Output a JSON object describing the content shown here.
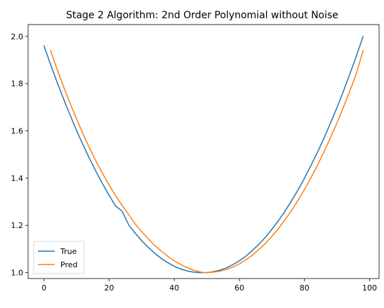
{
  "chart_data": {
    "type": "line",
    "title": "Stage 2 Algorithm: 2nd Order Polynomial without Noise",
    "xlabel": "",
    "ylabel": "",
    "xlim": [
      -4.9,
      102.9
    ],
    "ylim": [
      0.975,
      2.05
    ],
    "x_ticks": [
      0,
      20,
      40,
      60,
      80,
      100
    ],
    "y_ticks": [
      1.0,
      1.2,
      1.4,
      1.6,
      1.8,
      2.0
    ],
    "x_tick_labels": [
      "0",
      "20",
      "40",
      "60",
      "80",
      "100"
    ],
    "y_tick_labels": [
      "1.0",
      "1.2",
      "1.4",
      "1.6",
      "1.8",
      "2.0"
    ],
    "grid": false,
    "legend": {
      "position": "lower-left"
    },
    "series": [
      {
        "name": "True",
        "color": "#1f77b4",
        "x": [
          0,
          2,
          4,
          6,
          8,
          10,
          12,
          14,
          16,
          18,
          20,
          22,
          24,
          26,
          28,
          30,
          32,
          34,
          36,
          38,
          40,
          42,
          44,
          46,
          48,
          49,
          50,
          52,
          54,
          56,
          58,
          60,
          62,
          64,
          66,
          68,
          70,
          72,
          74,
          76,
          78,
          80,
          82,
          84,
          86,
          88,
          90,
          92,
          94,
          96,
          98
        ],
        "y": [
          1.96,
          1.881,
          1.806,
          1.735,
          1.667,
          1.601,
          1.54,
          1.482,
          1.427,
          1.375,
          1.327,
          1.282,
          1.26,
          1.202,
          1.167,
          1.135,
          1.107,
          1.082,
          1.06,
          1.042,
          1.027,
          1.015,
          1.007,
          1.002,
          1.0,
          1.0,
          1.0,
          1.004,
          1.01,
          1.02,
          1.034,
          1.05,
          1.07,
          1.094,
          1.12,
          1.15,
          1.184,
          1.22,
          1.26,
          1.304,
          1.35,
          1.4,
          1.454,
          1.51,
          1.57,
          1.634,
          1.7,
          1.77,
          1.844,
          1.92,
          2.0
        ]
      },
      {
        "name": "Pred",
        "color": "#ff7f0e",
        "x": [
          2,
          4,
          6,
          8,
          10,
          12,
          14,
          16,
          18,
          20,
          22,
          24,
          26,
          28,
          30,
          32,
          34,
          36,
          38,
          40,
          42,
          44,
          46,
          48,
          49,
          50,
          52,
          54,
          56,
          58,
          60,
          62,
          64,
          66,
          68,
          70,
          72,
          74,
          76,
          78,
          80,
          82,
          84,
          86,
          88,
          90,
          92,
          94,
          96,
          98
        ],
        "y": [
          1.94,
          1.861,
          1.787,
          1.717,
          1.65,
          1.587,
          1.527,
          1.471,
          1.419,
          1.37,
          1.325,
          1.284,
          1.246,
          1.206,
          1.173,
          1.143,
          1.115,
          1.091,
          1.069,
          1.05,
          1.034,
          1.021,
          1.01,
          1.003,
          1.0,
          1.0,
          1.002,
          1.006,
          1.013,
          1.024,
          1.037,
          1.054,
          1.074,
          1.098,
          1.124,
          1.154,
          1.187,
          1.223,
          1.263,
          1.306,
          1.352,
          1.402,
          1.455,
          1.512,
          1.572,
          1.635,
          1.702,
          1.772,
          1.846,
          1.94
        ]
      }
    ]
  }
}
